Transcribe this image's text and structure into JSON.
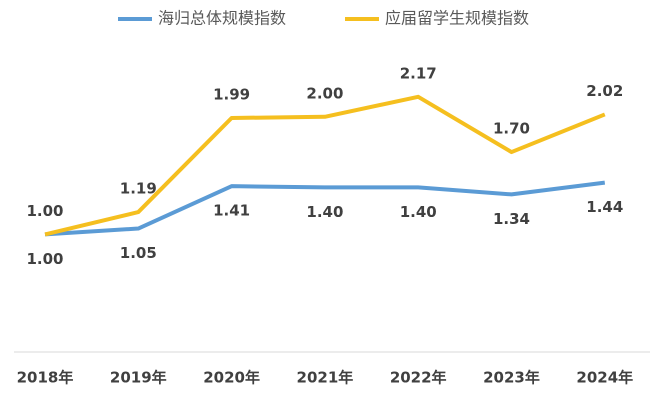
{
  "chart_data": {
    "type": "line",
    "categories": [
      "2018年",
      "2019年",
      "2020年",
      "2021年",
      "2022年",
      "2023年",
      "2024年"
    ],
    "series": [
      {
        "name": "海归总体规模指数",
        "color": "#5b9bd5",
        "values": [
          1.0,
          1.05,
          1.41,
          1.4,
          1.4,
          1.34,
          1.44
        ],
        "value_labels": [
          "1.00",
          "1.05",
          "1.41",
          "1.40",
          "1.40",
          "1.34",
          "1.44"
        ]
      },
      {
        "name": "应届留学生规模指数",
        "color": "#f5bf1f",
        "values": [
          1.0,
          1.19,
          1.99,
          2.0,
          2.17,
          1.7,
          2.02
        ],
        "value_labels": [
          "1.00",
          "1.19",
          "1.99",
          "2.00",
          "2.17",
          "1.70",
          "2.02"
        ]
      }
    ],
    "ylim": [
      0,
      2.5
    ],
    "legend": "top",
    "grid": false
  }
}
